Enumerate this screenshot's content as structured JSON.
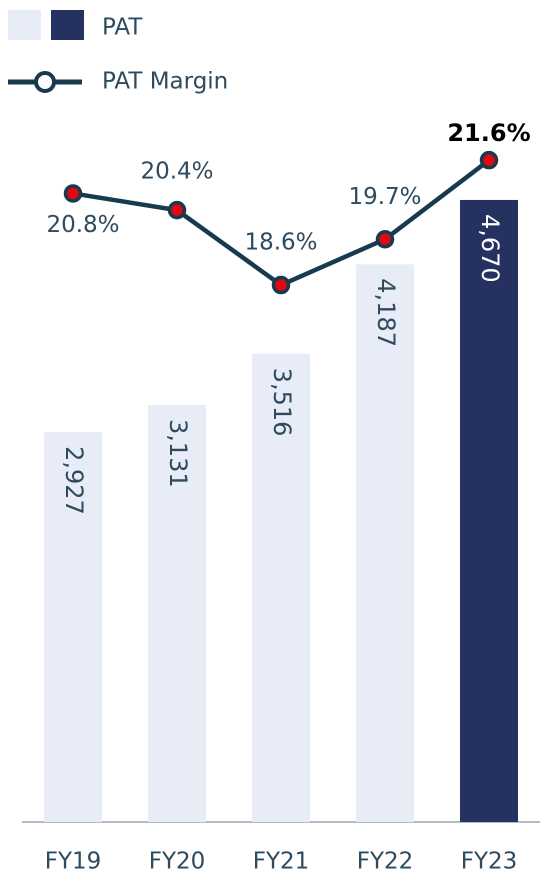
{
  "chart_data": {
    "type": "bar-line",
    "categories": [
      "FY19",
      "FY20",
      "FY21",
      "FY22",
      "FY23"
    ],
    "ylim": [
      0,
      5000
    ],
    "y2lim": [
      5.7,
      21.7
    ],
    "series": [
      {
        "name": "PAT",
        "type": "bar",
        "colors": [
          "#e8ecf7",
          "#e8ecf7",
          "#e8ecf7",
          "#e8ecf7",
          "#25325f"
        ],
        "values": [
          2927,
          3131,
          3516,
          4187,
          4670
        ],
        "value_labels": [
          "2,927",
          "3,131",
          "3,516",
          "4,187",
          "4,670"
        ]
      },
      {
        "name": "PAT Margin",
        "type": "line",
        "axis": "y2",
        "color": "#173a4e",
        "marker_color": "#e30613",
        "values": [
          20.8,
          20.4,
          18.6,
          19.7,
          21.6
        ],
        "value_labels": [
          "20.8%",
          "20.4%",
          "18.6%",
          "19.7%",
          "21.6%"
        ]
      }
    ]
  }
}
